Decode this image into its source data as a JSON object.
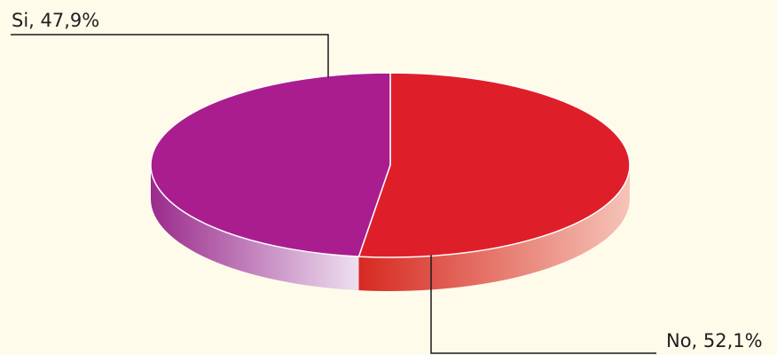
{
  "chart_data": {
    "type": "pie",
    "style": "3d",
    "title": "",
    "slices": [
      {
        "label": "No",
        "value": 52.1,
        "color": "#de1f2a",
        "side_light": "#f6c4b8",
        "side_dark": "#d62a21"
      },
      {
        "label": "Si",
        "value": 47.9,
        "color": "#aa1d8f",
        "side_light": "#eee0f0",
        "side_dark": "#9a2a8c"
      }
    ],
    "data_labels": {
      "no": "No, 52,1%",
      "si": "Si, 47,9%"
    },
    "background": "#fefbea"
  }
}
